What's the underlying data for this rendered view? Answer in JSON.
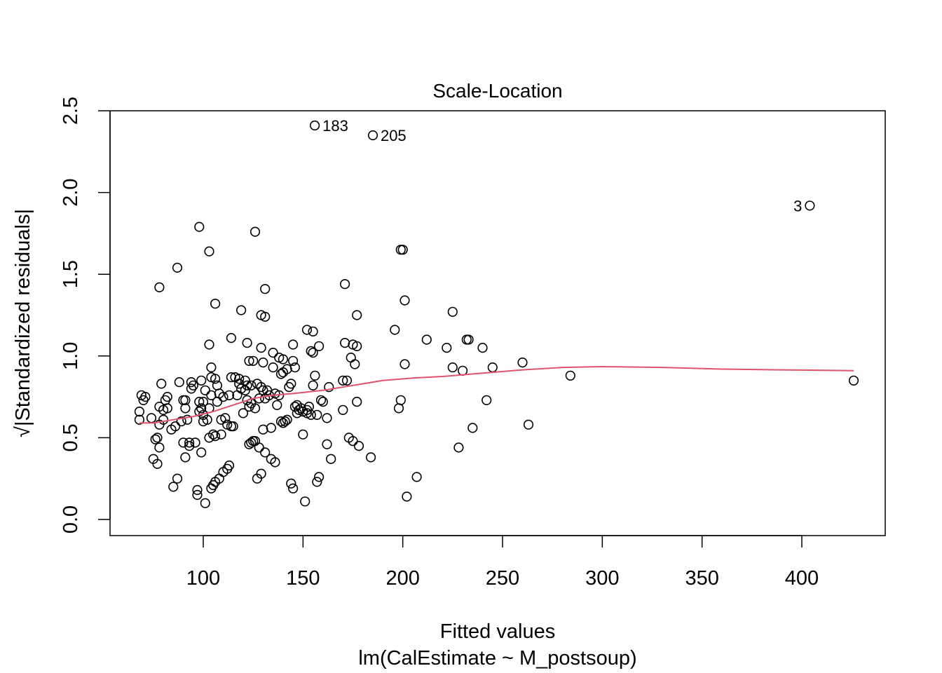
{
  "chart_data": {
    "type": "scatter",
    "title": "Scale-Location",
    "xlabel": "Fitted values",
    "xlabel_sub": "lm(CalEstimate ~ M_postsoup)",
    "ylabel": "√|Standardized residuals|",
    "xlim": [
      67,
      427
    ],
    "ylim": [
      0.0,
      2.5
    ],
    "x_ticks": [
      "100",
      "150",
      "200",
      "250",
      "300",
      "350",
      "400"
    ],
    "x_tick_values": [
      100,
      150,
      200,
      250,
      300,
      350,
      400
    ],
    "y_ticks": [
      "0.0",
      "0.5",
      "1.0",
      "1.5",
      "2.0",
      "2.5"
    ],
    "y_tick_values": [
      0.0,
      0.5,
      1.0,
      1.5,
      2.0,
      2.5
    ],
    "grid": false,
    "colors": {
      "points": "#000000",
      "smooth": "#DF536B",
      "frame": "#000000"
    },
    "labeled_points": [
      {
        "label": "183",
        "x": 155.9,
        "y": 2.41,
        "side": "right"
      },
      {
        "label": "205",
        "x": 185.0,
        "y": 2.35,
        "side": "right"
      },
      {
        "label": "3",
        "x": 404.0,
        "y": 1.92,
        "side": "left"
      }
    ],
    "smooth_line": {
      "x": [
        68,
        75,
        85,
        95,
        105,
        115,
        125,
        135,
        145,
        160,
        175,
        190,
        205,
        220,
        240,
        260,
        280,
        300,
        330,
        360,
        390,
        426
      ],
      "y": [
        0.59,
        0.59,
        0.61,
        0.63,
        0.66,
        0.7,
        0.74,
        0.76,
        0.77,
        0.79,
        0.82,
        0.85,
        0.865,
        0.875,
        0.895,
        0.915,
        0.93,
        0.935,
        0.93,
        0.92,
        0.915,
        0.91
      ]
    },
    "points": [
      [
        68,
        0.66
      ],
      [
        68,
        0.61
      ],
      [
        69,
        0.76
      ],
      [
        70,
        0.73
      ],
      [
        71,
        0.75
      ],
      [
        74,
        0.62
      ],
      [
        75,
        0.37
      ],
      [
        76,
        0.49
      ],
      [
        77,
        0.34
      ],
      [
        77,
        0.5
      ],
      [
        78,
        0.44
      ],
      [
        78,
        0.69
      ],
      [
        78,
        0.58
      ],
      [
        79,
        0.83
      ],
      [
        80,
        0.67
      ],
      [
        80,
        0.61
      ],
      [
        81,
        0.73
      ],
      [
        82,
        0.75
      ],
      [
        82,
        0.68
      ],
      [
        84,
        0.55
      ],
      [
        85,
        0.2
      ],
      [
        86,
        0.57
      ],
      [
        87,
        0.25
      ],
      [
        88,
        0.84
      ],
      [
        89,
        0.6
      ],
      [
        90,
        0.47
      ],
      [
        90,
        0.73
      ],
      [
        91,
        0.73
      ],
      [
        91,
        0.68
      ],
      [
        91,
        0.38
      ],
      [
        92,
        0.61
      ],
      [
        93,
        0.47
      ],
      [
        93,
        0.45
      ],
      [
        94,
        0.8
      ],
      [
        94,
        0.84
      ],
      [
        95,
        0.82
      ],
      [
        96,
        0.47
      ],
      [
        97,
        0.18
      ],
      [
        97,
        0.15
      ],
      [
        98,
        0.72
      ],
      [
        98,
        0.66
      ],
      [
        99,
        0.68
      ],
      [
        99,
        0.41
      ],
      [
        99,
        0.85
      ],
      [
        100,
        0.6
      ],
      [
        100,
        0.72
      ],
      [
        100,
        0.64
      ],
      [
        101,
        0.1
      ],
      [
        101,
        0.79
      ],
      [
        102,
        0.61
      ],
      [
        103,
        0.5
      ],
      [
        103,
        0.68
      ],
      [
        104,
        0.19
      ],
      [
        104,
        0.93
      ],
      [
        104,
        0.87
      ],
      [
        104,
        0.76
      ],
      [
        105,
        0.52
      ],
      [
        105,
        0.21
      ],
      [
        106,
        0.86
      ],
      [
        106,
        0.51
      ],
      [
        106,
        0.23
      ],
      [
        107,
        0.72
      ],
      [
        107,
        0.82
      ],
      [
        108,
        0.77
      ],
      [
        108,
        0.25
      ],
      [
        109,
        0.61
      ],
      [
        109,
        0.52
      ],
      [
        110,
        0.29
      ],
      [
        110,
        0.75
      ],
      [
        111,
        0.62
      ],
      [
        112,
        0.31
      ],
      [
        112,
        0.58
      ],
      [
        113,
        0.33
      ],
      [
        113,
        0.76
      ],
      [
        114,
        0.57
      ],
      [
        114,
        0.87
      ],
      [
        115,
        0.57
      ],
      [
        116,
        0.87
      ],
      [
        117,
        0.76
      ],
      [
        118,
        0.83
      ],
      [
        118,
        0.86
      ],
      [
        119,
        0.8
      ],
      [
        120,
        0.65
      ],
      [
        121,
        0.85
      ],
      [
        121,
        0.79
      ],
      [
        122,
        0.73
      ],
      [
        122,
        0.82
      ],
      [
        123,
        0.46
      ],
      [
        123,
        0.69
      ],
      [
        123,
        0.97
      ],
      [
        124,
        0.47
      ],
      [
        124,
        0.82
      ],
      [
        124,
        0.71
      ],
      [
        125,
        0.48
      ],
      [
        125,
        0.97
      ],
      [
        126,
        0.48
      ],
      [
        126,
        0.68
      ],
      [
        127,
        0.25
      ],
      [
        127,
        0.83
      ],
      [
        128,
        0.44
      ],
      [
        128,
        0.74
      ],
      [
        129,
        0.28
      ],
      [
        129,
        0.81
      ],
      [
        130,
        0.79
      ],
      [
        130,
        0.55
      ],
      [
        130,
        0.96
      ],
      [
        131,
        0.41
      ],
      [
        131,
        0.74
      ],
      [
        132,
        0.79
      ],
      [
        133,
        0.76
      ],
      [
        134,
        0.56
      ],
      [
        134,
        0.37
      ],
      [
        135,
        1.02
      ],
      [
        135,
        0.93
      ],
      [
        136,
        0.35
      ],
      [
        136,
        0.77
      ],
      [
        137,
        0.7
      ],
      [
        138,
        0.99
      ],
      [
        138,
        0.76
      ],
      [
        139,
        0.89
      ],
      [
        139,
        0.6
      ],
      [
        140,
        0.9
      ],
      [
        140,
        0.59
      ],
      [
        140,
        0.98
      ],
      [
        141,
        0.6
      ],
      [
        142,
        0.61
      ],
      [
        142,
        0.92
      ],
      [
        143,
        0.81
      ],
      [
        144,
        0.22
      ],
      [
        144,
        0.83
      ],
      [
        145,
        0.97
      ],
      [
        145,
        0.19
      ],
      [
        146,
        0.69
      ],
      [
        146,
        0.93
      ],
      [
        147,
        0.65
      ],
      [
        147,
        0.7
      ],
      [
        148,
        0.67
      ],
      [
        149,
        0.68
      ],
      [
        150,
        0.66
      ],
      [
        150,
        0.52
      ],
      [
        151,
        0.11
      ],
      [
        152,
        0.65
      ],
      [
        152,
        0.67
      ],
      [
        153,
        0.69
      ],
      [
        154,
        0.64
      ],
      [
        154,
        1.03
      ],
      [
        155,
        1.02
      ],
      [
        155,
        0.82
      ],
      [
        156,
        0.88
      ],
      [
        157,
        0.23
      ],
      [
        157,
        0.64
      ],
      [
        158,
        0.26
      ],
      [
        159,
        0.73
      ],
      [
        160,
        0.72
      ],
      [
        162,
        0.62
      ],
      [
        162,
        0.46
      ],
      [
        163,
        0.81
      ],
      [
        164,
        0.37
      ],
      [
        170,
        0.85
      ],
      [
        170,
        0.67
      ],
      [
        172,
        0.85
      ],
      [
        173,
        0.5
      ],
      [
        174,
        0.99
      ],
      [
        175,
        0.48
      ],
      [
        176,
        0.95
      ],
      [
        177,
        0.72
      ],
      [
        178,
        0.45
      ],
      [
        184,
        0.38
      ],
      [
        196,
        1.16
      ],
      [
        198,
        0.68
      ],
      [
        199,
        0.73
      ],
      [
        201,
        0.95
      ],
      [
        202,
        0.14
      ],
      [
        207,
        0.26
      ],
      [
        212,
        1.1
      ],
      [
        222,
        1.05
      ],
      [
        225,
        0.93
      ],
      [
        228,
        0.44
      ],
      [
        230,
        0.91
      ],
      [
        232,
        1.1
      ],
      [
        233,
        1.1
      ],
      [
        235,
        0.56
      ],
      [
        240,
        1.05
      ],
      [
        242,
        0.73
      ],
      [
        245,
        0.93
      ],
      [
        260,
        0.96
      ],
      [
        263,
        0.58
      ],
      [
        284,
        0.88
      ],
      [
        426,
        0.85
      ],
      [
        98,
        1.79
      ],
      [
        103,
        1.64
      ],
      [
        87,
        1.54
      ],
      [
        78,
        1.42
      ],
      [
        106,
        1.32
      ],
      [
        126,
        1.76
      ],
      [
        131,
        1.41
      ],
      [
        129,
        1.25
      ],
      [
        131,
        1.24
      ],
      [
        119,
        1.28
      ],
      [
        103,
        1.07
      ],
      [
        114,
        1.11
      ],
      [
        122,
        1.08
      ],
      [
        129,
        1.05
      ],
      [
        145,
        1.07
      ],
      [
        152,
        1.16
      ],
      [
        155,
        1.15
      ],
      [
        158,
        1.06
      ],
      [
        171,
        1.44
      ],
      [
        171,
        1.08
      ],
      [
        175,
        1.07
      ],
      [
        177,
        1.06
      ],
      [
        177,
        1.25
      ],
      [
        199,
        1.65
      ],
      [
        200,
        1.65
      ],
      [
        201,
        1.34
      ],
      [
        225,
        1.27
      ],
      [
        155.9,
        2.41
      ],
      [
        185.0,
        2.35
      ],
      [
        404.0,
        1.92
      ]
    ]
  }
}
